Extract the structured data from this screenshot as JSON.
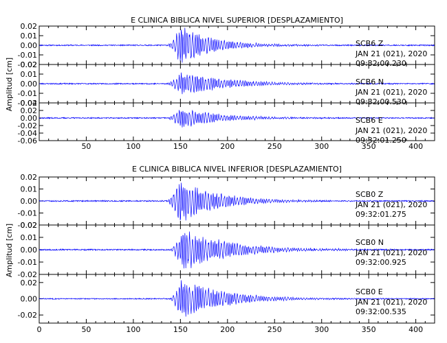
{
  "accent_color": "#0000ff",
  "chart_data": [
    {
      "type": "line",
      "title": "E CLINICA BIBLICA NIVEL SUPERIOR [DESPLAZAMIENTO]",
      "ylabel": "Amplitud [cm]",
      "xlabel": "",
      "xlim": [
        0,
        420
      ],
      "x_ticks": [
        50,
        100,
        150,
        200,
        250,
        300,
        350,
        400
      ],
      "x_tick_labels": [
        "50",
        "100",
        "150",
        "200",
        "250",
        "300",
        "350",
        "400"
      ],
      "grid": false,
      "series": [
        {
          "name": "SCB6  Z",
          "date": "JAN 21 (021), 2020",
          "time": "09:32:00.230",
          "ylim": [
            -0.02,
            0.02
          ],
          "y_ticks": [
            -0.02,
            -0.01,
            0.0,
            0.01,
            0.02
          ],
          "y_tick_labels": [
            "-0.02",
            "-0.01",
            "0.00",
            "0.01",
            "0.02"
          ],
          "waveform": {
            "onset": 135,
            "peak_time": 150,
            "peak_amp": 0.022,
            "decay": 35,
            "noise": 0.0006,
            "seed": 11
          }
        },
        {
          "name": "SCB6  N",
          "date": "JAN 21 (021), 2020",
          "time": "09:32:00.530",
          "ylim": [
            -0.02,
            0.02
          ],
          "y_ticks": [
            -0.02,
            -0.01,
            0.0,
            0.01,
            0.02
          ],
          "y_tick_labels": [
            "-0.02",
            "-0.01",
            "0.00",
            "0.01",
            "0.02"
          ],
          "waveform": {
            "onset": 135,
            "peak_time": 152,
            "peak_amp": 0.014,
            "decay": 45,
            "noise": 0.0006,
            "seed": 23
          }
        },
        {
          "name": "SCB6  E",
          "date": "JAN 21 (021), 2020",
          "time": "09:32:01.250",
          "ylim": [
            -0.06,
            0.04
          ],
          "y_ticks": [
            -0.06,
            -0.04,
            -0.02,
            0.0,
            0.02,
            0.04
          ],
          "y_tick_labels": [
            "-0.06",
            "-0.04",
            "-0.02",
            "0.00",
            "0.02",
            "0.04"
          ],
          "waveform": {
            "onset": 135,
            "peak_time": 150,
            "peak_amp": 0.03,
            "decay": 40,
            "noise": 0.0015,
            "seed": 37
          }
        }
      ]
    },
    {
      "type": "line",
      "title": "E CLINICA BIBLICA NIVEL INFERIOR [DESPLAZAMIENTO]",
      "ylabel": "Amplitud [cm]",
      "xlabel": "",
      "xlim": [
        0,
        420
      ],
      "x_ticks": [
        0,
        50,
        100,
        150,
        200,
        250,
        300,
        350,
        400
      ],
      "x_tick_labels": [
        "0",
        "50",
        "100",
        "150",
        "200",
        "250",
        "300",
        "350",
        "400"
      ],
      "grid": false,
      "series": [
        {
          "name": "SCB0  Z",
          "date": "JAN 21 (021), 2020",
          "time": "09:32:01.275",
          "ylim": [
            -0.02,
            0.02
          ],
          "y_ticks": [
            -0.02,
            -0.01,
            0.0,
            0.01,
            0.02
          ],
          "y_tick_labels": [
            "-0.02",
            "-0.01",
            "0.00",
            "0.01",
            "0.02"
          ],
          "waveform": {
            "onset": 135,
            "peak_time": 150,
            "peak_amp": 0.02,
            "decay": 38,
            "noise": 0.0005,
            "seed": 51
          }
        },
        {
          "name": "SCB0  N",
          "date": "JAN 21 (021), 2020",
          "time": "09:32:00.925",
          "ylim": [
            -0.02,
            0.02
          ],
          "y_ticks": [
            -0.02,
            -0.01,
            0.0,
            0.01,
            0.02
          ],
          "y_tick_labels": [
            "-0.02",
            "-0.01",
            "0.00",
            "0.01",
            "0.02"
          ],
          "waveform": {
            "onset": 138,
            "peak_time": 152,
            "peak_amp": 0.018,
            "decay": 50,
            "noise": 0.0005,
            "seed": 67
          }
        },
        {
          "name": "SCB0  E",
          "date": "JAN 21 (021), 2020",
          "time": "09:32:00.535",
          "ylim": [
            -0.03,
            0.03
          ],
          "y_ticks": [
            -0.02,
            0.0,
            0.02
          ],
          "y_tick_labels": [
            "-0.02",
            "0.00",
            "0.02"
          ],
          "waveform": {
            "onset": 138,
            "peak_time": 151,
            "peak_amp": 0.026,
            "decay": 45,
            "noise": 0.0006,
            "seed": 83
          }
        }
      ]
    }
  ]
}
